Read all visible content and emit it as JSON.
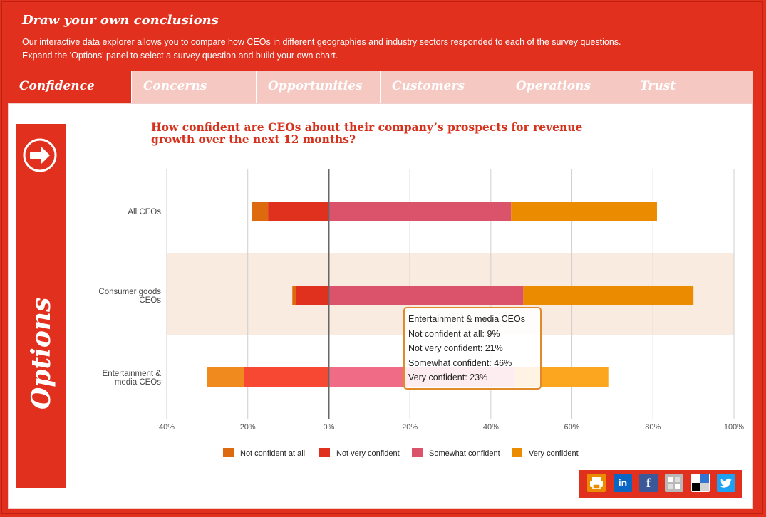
{
  "header": {
    "title": "Draw your own conclusions",
    "line1": "Our interactive data explorer allows you to compare how CEOs in different geographies and industry sectors responded to each of the survey questions.",
    "line2": "Expand the 'Options' panel to select a survey question and build your own chart."
  },
  "tabs": [
    {
      "label": "Confidence",
      "active": true
    },
    {
      "label": "Concerns",
      "active": false
    },
    {
      "label": "Opportunities",
      "active": false
    },
    {
      "label": "Customers",
      "active": false
    },
    {
      "label": "Operations",
      "active": false
    },
    {
      "label": "Trust",
      "active": false
    }
  ],
  "options": {
    "label": "Options",
    "icon": "arrow-right-icon"
  },
  "colors": {
    "brand": "#e2301f",
    "not_confident_at_all": "#de6a10",
    "not_very_confident": "#e0301e",
    "somewhat_confident": "#db536a",
    "very_confident": "#eb8c00"
  },
  "chart_data": {
    "type": "bar",
    "orientation": "horizontal",
    "stacked": "diverging",
    "title": "How confident are CEOs about their company’s prospects for revenue growth over the next 12 months?",
    "categories": [
      "All CEOs",
      "Consumer goods CEOs",
      "Entertainment & media CEOs"
    ],
    "category_labels": [
      [
        "All CEOs"
      ],
      [
        "Consumer goods",
        "CEOs"
      ],
      [
        "Entertainment &",
        "media CEOs"
      ]
    ],
    "series": [
      {
        "name": "Not confident at all",
        "side": "negative",
        "values": [
          4,
          1,
          9
        ]
      },
      {
        "name": "Not very confident",
        "side": "negative",
        "values": [
          15,
          8,
          21
        ]
      },
      {
        "name": "Somewhat confident",
        "side": "positive",
        "values": [
          45,
          48,
          46
        ]
      },
      {
        "name": "Very confident",
        "side": "positive",
        "values": [
          36,
          42,
          23
        ]
      }
    ],
    "xlim": [
      -40,
      100
    ],
    "xticks": [
      -40,
      -20,
      0,
      20,
      40,
      60,
      80,
      100
    ],
    "xtick_labels": [
      "40%",
      "20%",
      "0%",
      "20%",
      "40%",
      "60%",
      "80%",
      "100%"
    ],
    "highlighted_category": "Consumer goods CEOs",
    "hovered_category": "Entertainment & media CEOs",
    "legend_position": "bottom",
    "grid": true
  },
  "tooltip": {
    "title": "Entertainment & media CEOs",
    "lines": [
      "Not confident at all: 9%",
      "Not very confident: 21%",
      "Somewhat confident: 46%",
      "Very confident: 23%"
    ]
  },
  "share": [
    {
      "name": "print",
      "icon": "print-icon",
      "color": "#eb8c00"
    },
    {
      "name": "linkedin",
      "icon": "linkedin-icon",
      "color": "#0a66c2",
      "text": "in"
    },
    {
      "name": "facebook",
      "icon": "facebook-icon",
      "color": "#3b5998",
      "text": "f"
    },
    {
      "name": "digg",
      "icon": "digg-icon",
      "color": "#b8b8b8"
    },
    {
      "name": "delicious",
      "icon": "delicious-icon",
      "color": "#ffffff"
    },
    {
      "name": "twitter",
      "icon": "twitter-icon",
      "color": "#1da1f2"
    }
  ]
}
